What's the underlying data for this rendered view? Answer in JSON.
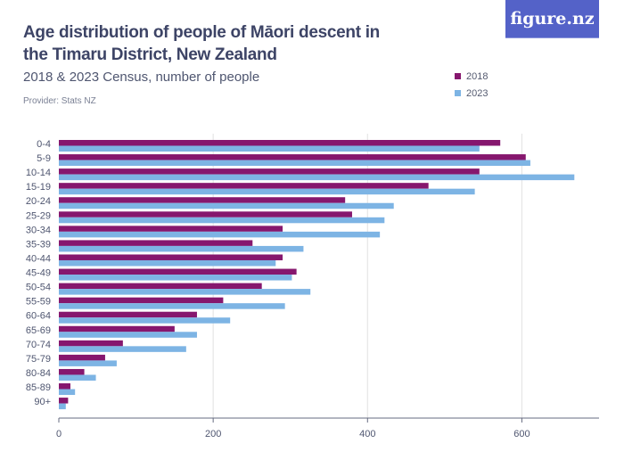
{
  "header": {
    "title": "Age distribution of people of Māori descent in the Timaru District, New Zealand",
    "subtitle": "2018 & 2023 Census, number of people",
    "provider": "Provider: Stats NZ",
    "logo": "figure.nz"
  },
  "chart_data": {
    "type": "bar",
    "orientation": "horizontal",
    "title": "Age distribution of people of Māori descent in the Timaru District, New Zealand",
    "subtitle": "2018 & 2023 Census, number of people",
    "xlabel": "",
    "ylabel": "",
    "xlim": [
      0,
      700
    ],
    "xticks": [
      0,
      200,
      400,
      600
    ],
    "grid": true,
    "legend": "top-right",
    "categories": [
      "0-4",
      "5-9",
      "10-14",
      "15-19",
      "20-24",
      "25-29",
      "30-34",
      "35-39",
      "40-44",
      "45-49",
      "50-54",
      "55-59",
      "60-64",
      "65-69",
      "70-74",
      "75-79",
      "80-84",
      "85-89",
      "90+"
    ],
    "series": [
      {
        "name": "2018",
        "color": "#86176e",
        "values": [
          572,
          605,
          545,
          479,
          371,
          380,
          290,
          251,
          290,
          308,
          263,
          213,
          179,
          150,
          83,
          60,
          33,
          15,
          12
        ]
      },
      {
        "name": "2023",
        "color": "#7db4e4",
        "values": [
          545,
          611,
          668,
          539,
          434,
          422,
          416,
          317,
          281,
          302,
          326,
          293,
          222,
          179,
          165,
          75,
          48,
          21,
          9
        ]
      }
    ]
  }
}
